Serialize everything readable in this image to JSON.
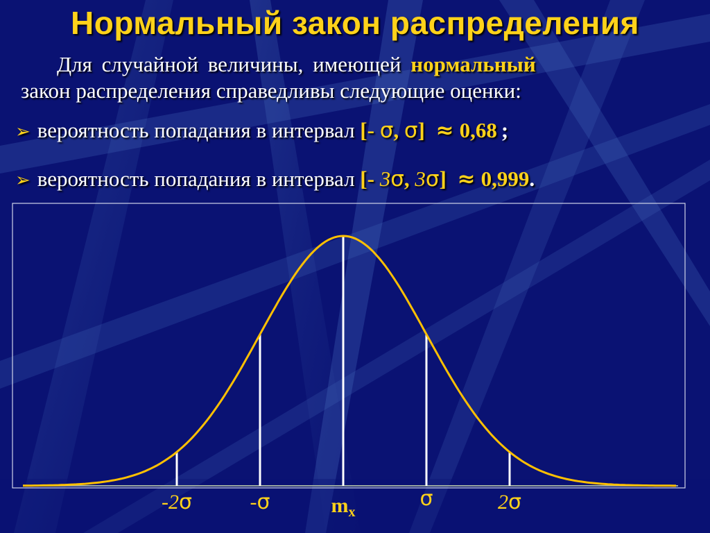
{
  "slide": {
    "title": "Нормальный закон распределения",
    "intro_line1_text": "Для случайной величины, имеющей",
    "intro_line1_highlight": "нормальный",
    "intro_line2": "закон распределения справедливы следующие оценки:"
  },
  "bullets": [
    {
      "text": "вероятность попадания в интервал",
      "interval_open": "[-",
      "interval_mult1": "",
      "interval_sigma1": "σ",
      "interval_sep": ",",
      "interval_mult2": "",
      "interval_sigma2": "σ",
      "interval_close": "]",
      "approx": "≈",
      "value": "0,68",
      "suffix": ";"
    },
    {
      "text": "вероятность попадания в интервал",
      "interval_open": "[-",
      "interval_mult1": "3",
      "interval_sigma1": "σ",
      "interval_sep": ",",
      "interval_mult2": "3",
      "interval_sigma2": "σ",
      "interval_close": "]",
      "approx": "≈",
      "value": "0,999",
      "suffix": "."
    }
  ],
  "chart_data": {
    "type": "line",
    "curve": "normal-density",
    "mean": 0,
    "sd": 1,
    "x_range": [
      -3.85,
      4.0
    ],
    "vertical_markers": [
      -2,
      -1,
      0,
      1,
      2
    ],
    "tick_labels": [
      {
        "x": -2,
        "prefix": "-2",
        "symbol": "σ",
        "sub": ""
      },
      {
        "x": -1,
        "prefix": "-",
        "symbol": "σ",
        "sub": ""
      },
      {
        "x": 0,
        "prefix": "m",
        "symbol": "",
        "sub": "x"
      },
      {
        "x": 1,
        "prefix": "",
        "symbol": "σ",
        "sub": ""
      },
      {
        "x": 2,
        "prefix": "2",
        "symbol": "σ",
        "sub": ""
      }
    ],
    "colors": {
      "curve": "#ffc000",
      "markers": "#ffffff",
      "baseline": "#9aa8a0",
      "frame": "#d0d4e8",
      "labels": "#ffd21a",
      "background": "#0a1273"
    }
  }
}
